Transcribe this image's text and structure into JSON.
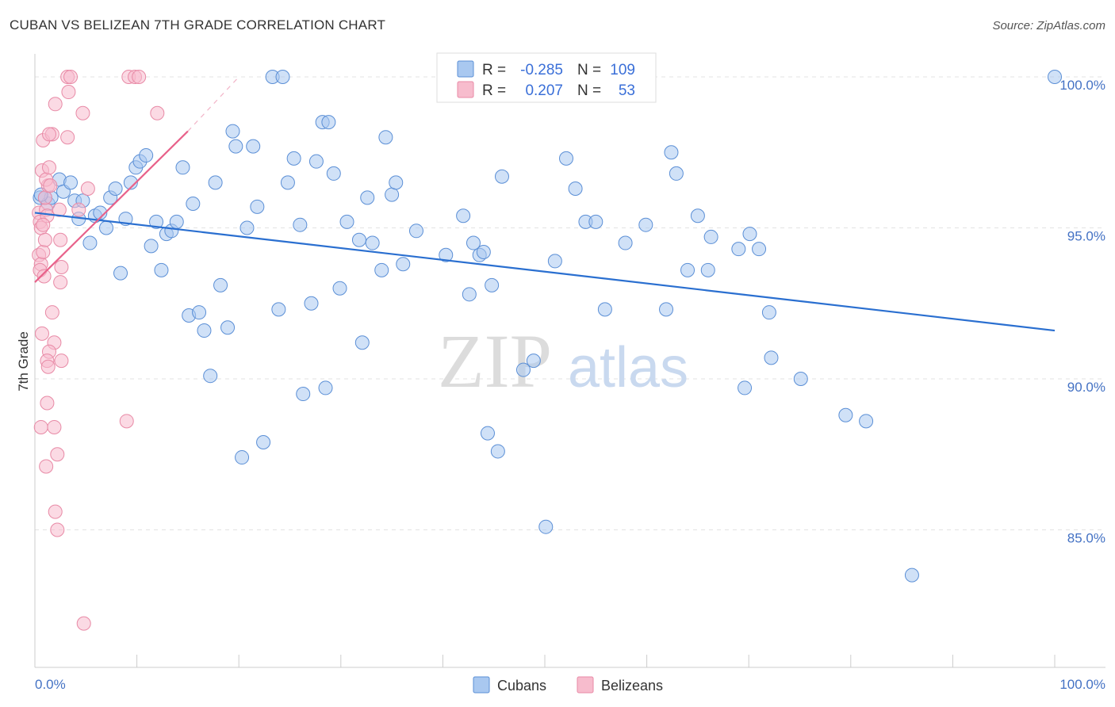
{
  "header": {
    "title": "CUBAN VS BELIZEAN 7TH GRADE CORRELATION CHART",
    "source": "Source: ZipAtlas.com"
  },
  "colors": {
    "cubans_fill": "#a9c8f0",
    "cubans_stroke": "#5b8fd6",
    "cubans_line": "#2a6fd0",
    "belizeans_fill": "#f7bccd",
    "belizeans_stroke": "#e88aa6",
    "belizeans_line": "#e8618a",
    "tick_label": "#4472c4"
  },
  "legend": {
    "rows": [
      {
        "r_label": "R =",
        "r_value": "-0.285",
        "n_label": "N =",
        "n_value": "109"
      },
      {
        "r_label": "R =",
        "r_value": "0.207",
        "n_label": "N =",
        "n_value": "53"
      }
    ]
  },
  "watermark": {
    "zip": "ZIP",
    "atlas": "atlas"
  },
  "chart_data": {
    "type": "scatter",
    "title": "CUBAN VS BELIZEAN 7TH GRADE CORRELATION CHART",
    "xlabel": "",
    "ylabel": "7th Grade",
    "xlim": [
      0,
      100
    ],
    "ylim": [
      80.5,
      100.7
    ],
    "x_tick_labels": [
      "0.0%",
      "100.0%"
    ],
    "y_ticks": [
      85,
      90,
      95,
      100
    ],
    "y_tick_labels": [
      "85.0%",
      "90.0%",
      "95.0%",
      "100.0%"
    ],
    "grid": true,
    "legend_position": "top-center",
    "series": [
      {
        "name": "Cubans",
        "trend": {
          "x": [
            0,
            100
          ],
          "y": [
            95.5,
            91.6
          ]
        },
        "points": [
          [
            0.5,
            96.0
          ],
          [
            1.0,
            96.0
          ],
          [
            1.3,
            95.8
          ],
          [
            1.6,
            96.0
          ],
          [
            2.4,
            96.6
          ],
          [
            2.8,
            96.2
          ],
          [
            3.5,
            96.5
          ],
          [
            3.9,
            95.9
          ],
          [
            4.3,
            95.3
          ],
          [
            4.7,
            95.9
          ],
          [
            5.4,
            94.5
          ],
          [
            5.9,
            95.4
          ],
          [
            6.4,
            95.5
          ],
          [
            7.0,
            95.0
          ],
          [
            7.4,
            96.0
          ],
          [
            7.9,
            96.3
          ],
          [
            8.4,
            93.5
          ],
          [
            8.9,
            95.3
          ],
          [
            9.4,
            96.5
          ],
          [
            9.9,
            97.0
          ],
          [
            10.3,
            97.2
          ],
          [
            10.9,
            97.4
          ],
          [
            11.4,
            94.4
          ],
          [
            11.9,
            95.2
          ],
          [
            12.4,
            93.6
          ],
          [
            12.9,
            94.8
          ],
          [
            13.4,
            94.9
          ],
          [
            13.9,
            95.2
          ],
          [
            14.5,
            97.0
          ],
          [
            15.1,
            92.1
          ],
          [
            15.5,
            95.8
          ],
          [
            16.1,
            92.2
          ],
          [
            16.6,
            91.6
          ],
          [
            17.2,
            90.1
          ],
          [
            17.7,
            96.5
          ],
          [
            18.2,
            93.1
          ],
          [
            18.9,
            91.7
          ],
          [
            19.4,
            98.2
          ],
          [
            19.7,
            97.7
          ],
          [
            20.3,
            87.4
          ],
          [
            20.8,
            95.0
          ],
          [
            21.4,
            97.7
          ],
          [
            21.8,
            95.7
          ],
          [
            22.4,
            87.9
          ],
          [
            23.3,
            100.0
          ],
          [
            23.9,
            92.3
          ],
          [
            24.3,
            100.0
          ],
          [
            24.8,
            96.5
          ],
          [
            25.4,
            97.3
          ],
          [
            26.0,
            95.1
          ],
          [
            26.3,
            89.5
          ],
          [
            27.1,
            92.5
          ],
          [
            27.6,
            97.2
          ],
          [
            28.2,
            98.5
          ],
          [
            28.5,
            89.7
          ],
          [
            28.8,
            98.5
          ],
          [
            29.3,
            96.8
          ],
          [
            29.9,
            93.0
          ],
          [
            30.6,
            95.2
          ],
          [
            31.8,
            94.6
          ],
          [
            32.1,
            91.2
          ],
          [
            32.6,
            96.0
          ],
          [
            33.1,
            94.5
          ],
          [
            34.0,
            93.6
          ],
          [
            34.4,
            98.0
          ],
          [
            35.0,
            96.1
          ],
          [
            35.4,
            96.5
          ],
          [
            36.1,
            93.8
          ],
          [
            37.4,
            94.9
          ],
          [
            40.3,
            94.1
          ],
          [
            42.0,
            95.4
          ],
          [
            42.6,
            92.8
          ],
          [
            43.0,
            94.5
          ],
          [
            43.6,
            94.1
          ],
          [
            44.0,
            94.2
          ],
          [
            44.4,
            88.2
          ],
          [
            44.8,
            93.1
          ],
          [
            45.4,
            87.6
          ],
          [
            45.8,
            96.7
          ],
          [
            47.9,
            90.3
          ],
          [
            48.9,
            90.6
          ],
          [
            50.1,
            85.1
          ],
          [
            51.0,
            93.9
          ],
          [
            52.1,
            97.3
          ],
          [
            53.0,
            96.3
          ],
          [
            54.0,
            95.2
          ],
          [
            55.0,
            95.2
          ],
          [
            55.9,
            92.3
          ],
          [
            57.9,
            94.5
          ],
          [
            59.9,
            95.1
          ],
          [
            61.9,
            92.3
          ],
          [
            62.4,
            97.5
          ],
          [
            62.9,
            96.8
          ],
          [
            64.0,
            93.6
          ],
          [
            65.0,
            95.4
          ],
          [
            66.0,
            93.6
          ],
          [
            66.3,
            94.7
          ],
          [
            69.0,
            94.3
          ],
          [
            69.6,
            89.7
          ],
          [
            70.1,
            94.8
          ],
          [
            71.0,
            94.3
          ],
          [
            72.0,
            92.2
          ],
          [
            72.2,
            90.7
          ],
          [
            75.1,
            90.0
          ],
          [
            79.5,
            88.8
          ],
          [
            81.5,
            88.6
          ],
          [
            86.0,
            83.5
          ],
          [
            100.0,
            100.0
          ],
          [
            0.6,
            96.1
          ]
        ]
      },
      {
        "name": "Belizeans",
        "trend": {
          "x": [
            0,
            15
          ],
          "y": [
            93.2,
            98.2
          ]
        },
        "trend_extension": {
          "x": [
            15,
            20
          ],
          "y": [
            98.2,
            100.0
          ]
        },
        "points": [
          [
            0.4,
            95.5
          ],
          [
            0.5,
            95.2
          ],
          [
            0.6,
            95.0
          ],
          [
            0.4,
            94.1
          ],
          [
            0.6,
            93.8
          ],
          [
            0.5,
            93.6
          ],
          [
            0.8,
            94.2
          ],
          [
            0.9,
            93.4
          ],
          [
            1.0,
            94.6
          ],
          [
            1.1,
            95.6
          ],
          [
            1.2,
            95.4
          ],
          [
            1.0,
            96.0
          ],
          [
            1.3,
            96.4
          ],
          [
            0.7,
            96.9
          ],
          [
            1.1,
            96.6
          ],
          [
            1.4,
            97.0
          ],
          [
            0.8,
            97.9
          ],
          [
            1.7,
            98.1
          ],
          [
            1.4,
            98.1
          ],
          [
            2.0,
            99.1
          ],
          [
            2.4,
            95.6
          ],
          [
            2.5,
            94.6
          ],
          [
            2.6,
            93.7
          ],
          [
            2.5,
            93.2
          ],
          [
            1.7,
            92.2
          ],
          [
            0.7,
            91.5
          ],
          [
            1.9,
            91.2
          ],
          [
            1.4,
            90.9
          ],
          [
            1.2,
            90.6
          ],
          [
            1.3,
            90.4
          ],
          [
            2.6,
            90.6
          ],
          [
            1.2,
            89.2
          ],
          [
            0.6,
            88.4
          ],
          [
            1.9,
            88.4
          ],
          [
            2.2,
            87.5
          ],
          [
            1.1,
            87.1
          ],
          [
            2.0,
            85.6
          ],
          [
            2.2,
            85.0
          ],
          [
            3.2,
            100.0
          ],
          [
            3.5,
            100.0
          ],
          [
            3.3,
            99.5
          ],
          [
            3.2,
            98.0
          ],
          [
            4.7,
            98.8
          ],
          [
            5.2,
            96.3
          ],
          [
            4.3,
            95.6
          ],
          [
            9.2,
            100.0
          ],
          [
            9.8,
            100.0
          ],
          [
            10.2,
            100.0
          ],
          [
            12.0,
            98.8
          ],
          [
            9.0,
            88.6
          ],
          [
            4.8,
            81.9
          ],
          [
            0.8,
            95.1
          ],
          [
            1.5,
            96.4
          ]
        ]
      }
    ]
  }
}
